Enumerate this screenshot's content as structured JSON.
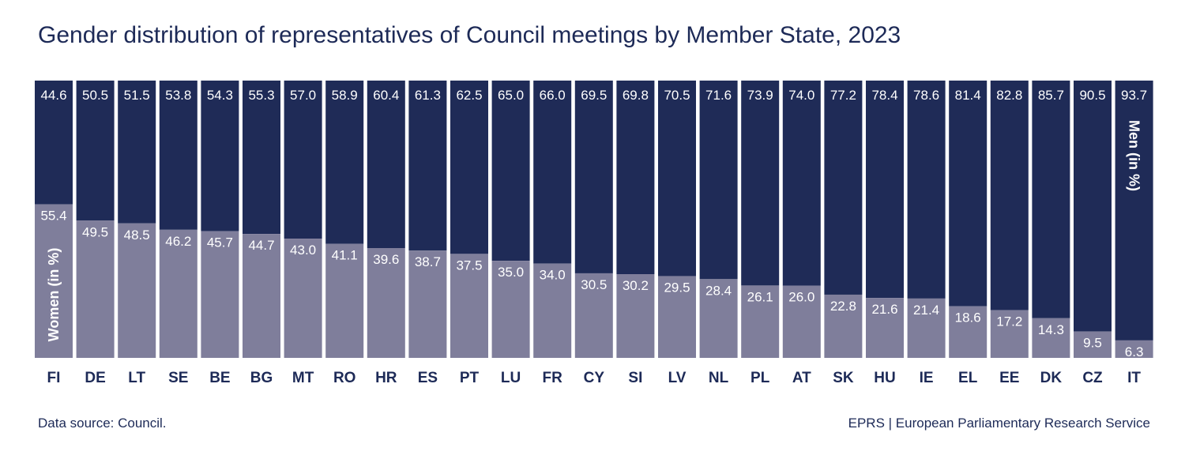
{
  "title": "Gender distribution of representatives of Council meetings by Member State, 2023",
  "footer": {
    "source": "Data source: Council.",
    "credit": "EPRS | European Parliamentary Research Service"
  },
  "colors": {
    "men": "#1f2b57",
    "women": "#7f7e9b",
    "text_dark": "#1d2a57",
    "text_light": "#ffffff"
  },
  "chart_data": {
    "type": "bar",
    "stacked": true,
    "orientation": "vertical",
    "categories": [
      "FI",
      "DE",
      "LT",
      "SE",
      "BE",
      "BG",
      "MT",
      "RO",
      "HR",
      "ES",
      "PT",
      "LU",
      "FR",
      "CY",
      "SI",
      "LV",
      "NL",
      "PL",
      "AT",
      "SK",
      "HU",
      "IE",
      "EL",
      "EE",
      "DK",
      "CZ",
      "IT"
    ],
    "series": [
      {
        "name": "Women (in %)",
        "color": "#7f7e9b",
        "values": [
          55.4,
          49.5,
          48.5,
          46.2,
          45.7,
          44.7,
          43.0,
          41.1,
          39.6,
          38.7,
          37.5,
          35.0,
          34.0,
          30.5,
          30.2,
          29.5,
          28.4,
          26.1,
          26.0,
          22.8,
          21.6,
          21.4,
          18.6,
          17.2,
          14.3,
          9.5,
          6.3
        ]
      },
      {
        "name": "Men (in %)",
        "color": "#1f2b57",
        "values": [
          44.6,
          50.5,
          51.5,
          53.8,
          54.3,
          55.3,
          57.0,
          58.9,
          60.4,
          61.3,
          62.5,
          65.0,
          66.0,
          69.5,
          69.8,
          70.5,
          71.6,
          73.9,
          74.0,
          77.2,
          78.4,
          78.6,
          81.4,
          82.8,
          85.7,
          90.5,
          93.7
        ]
      }
    ],
    "ylim": [
      0,
      100
    ],
    "grid": false,
    "legend": "inline labels inside first and last bars"
  }
}
